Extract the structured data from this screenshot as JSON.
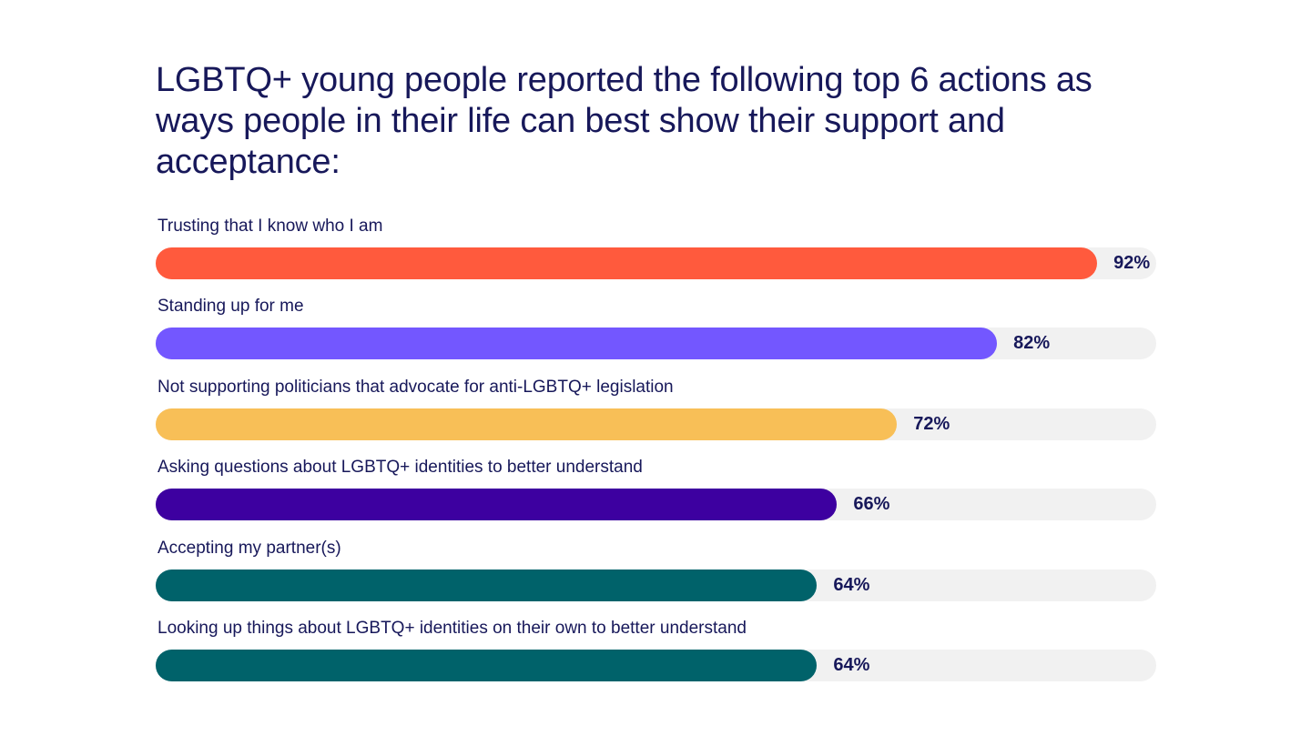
{
  "title": "LGBTQ+ young people reported the following top 6 actions as ways people in their life can best show their support and acceptance:",
  "chart_data": {
    "type": "bar",
    "orientation": "horizontal",
    "title": "LGBTQ+ young people reported the following top 6 actions as ways people in their life can best show their support and acceptance:",
    "xlim": [
      0,
      100
    ],
    "grid": false,
    "categories": [
      "Trusting that I know who I am",
      "Standing up for me",
      "Not supporting politicians that advocate for anti-LGBTQ+ legislation",
      "Asking questions about LGBTQ+ identities to better understand",
      "Accepting my partner(s)",
      "Looking up things about LGBTQ+ identities on their own to better understand"
    ],
    "values": [
      92,
      82,
      72,
      66,
      64,
      64
    ],
    "value_labels": [
      "92%",
      "82%",
      "72%",
      "66%",
      "64%",
      "64%"
    ],
    "colors": [
      "#ff5a3d",
      "#7357ff",
      "#f8bf57",
      "#3d00a0",
      "#00626a",
      "#00626a"
    ],
    "track_color": "#f1f1f1"
  }
}
